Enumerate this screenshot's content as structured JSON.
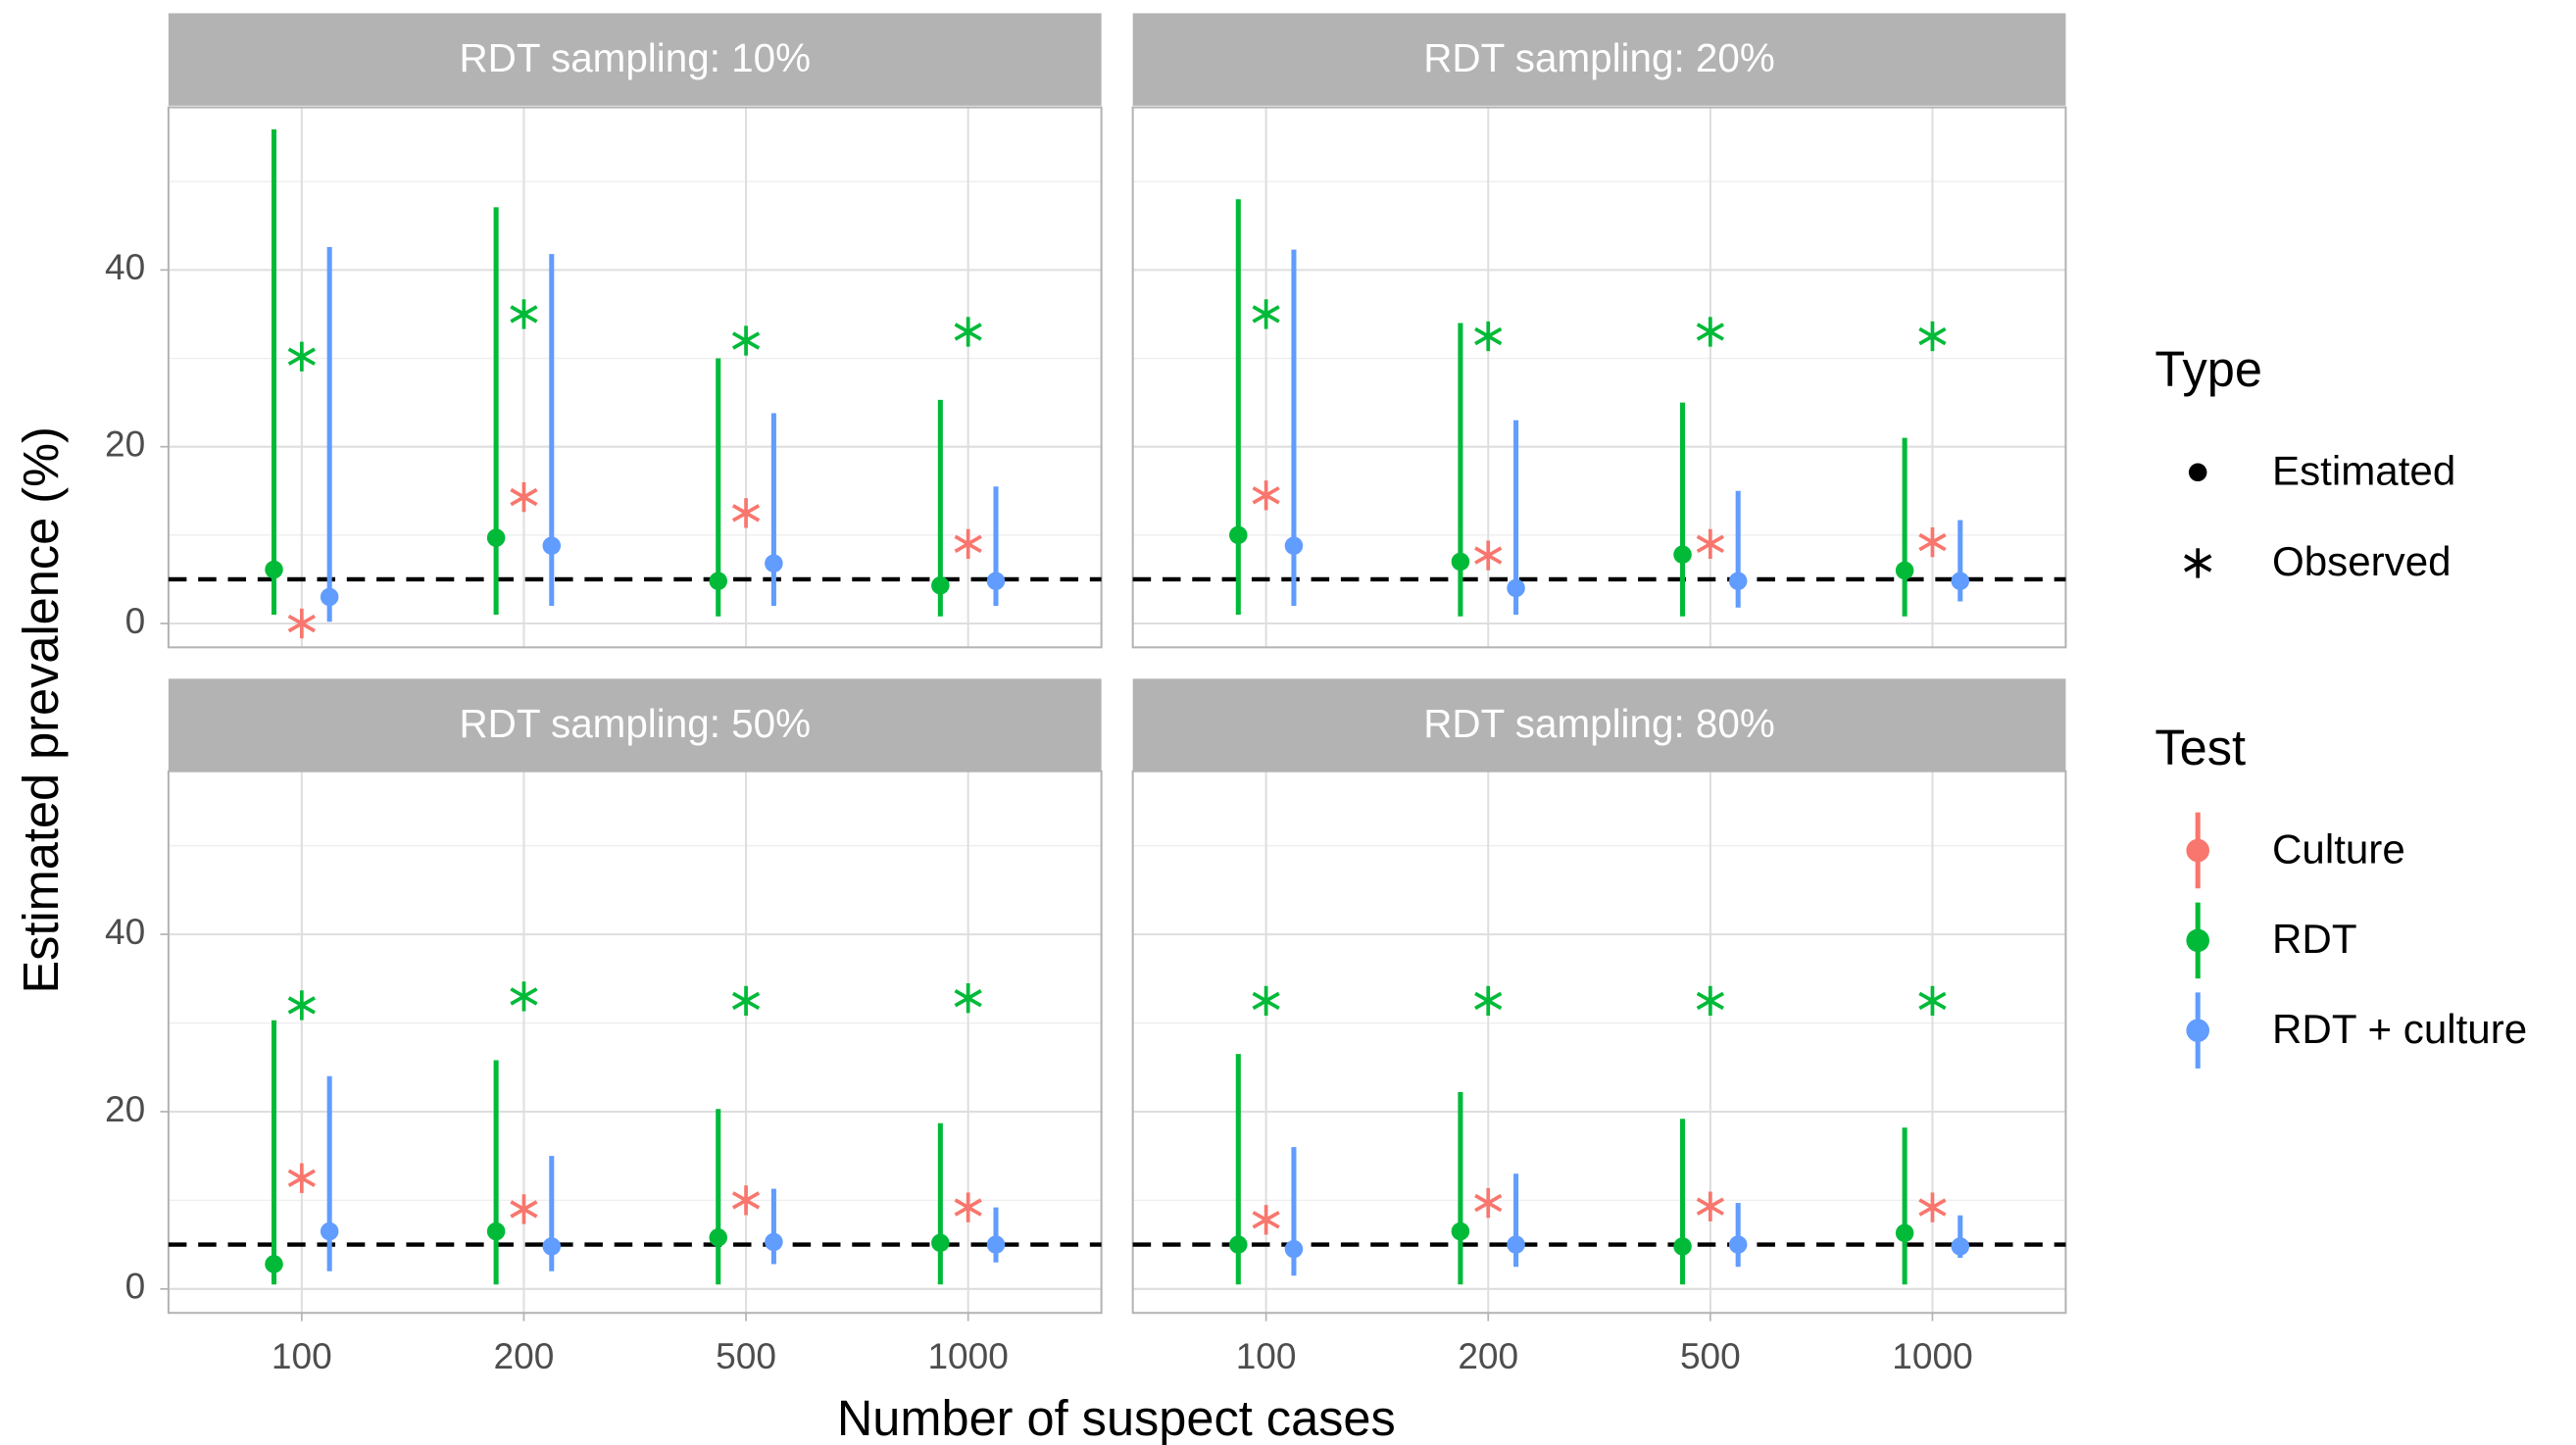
{
  "y_label": "Estimated prevalence (%)",
  "x_label": "Number of suspect cases",
  "legend": {
    "type_title": "Type",
    "type_entries": [
      "Estimated",
      "Observed"
    ],
    "test_title": "Test"
  },
  "chart_data": [
    {
      "type": "pointrange",
      "title": "RDT sampling: 10%",
      "categories": [
        "100",
        "200",
        "500",
        "1000"
      ],
      "ylim": [
        -2.7,
        58.4
      ],
      "yticks": [
        0,
        20,
        40
      ],
      "yminor_ticks": [
        10,
        30,
        50
      ],
      "grid": true,
      "reference_line": 5,
      "series": [
        {
          "name": "Culture",
          "color": "#f8766d",
          "observed": [
            0,
            14.3,
            12.5,
            9
          ]
        },
        {
          "name": "RDT",
          "color": "#00ba38",
          "estimated": [
            6.1,
            9.7,
            4.8,
            4.3
          ],
          "lower": [
            1,
            1,
            0.8,
            0.8
          ],
          "upper": [
            55.9,
            47.1,
            30,
            25.3
          ],
          "observed": [
            30.2,
            35,
            32,
            33
          ]
        },
        {
          "name": "RDT + culture",
          "color": "#619cff",
          "estimated": [
            3,
            8.8,
            6.8,
            4.8
          ],
          "lower": [
            0.2,
            2,
            2,
            2
          ],
          "upper": [
            42.6,
            41.8,
            23.8,
            15.5
          ]
        }
      ]
    },
    {
      "type": "pointrange",
      "title": "RDT sampling: 20%",
      "categories": [
        "100",
        "200",
        "500",
        "1000"
      ],
      "ylim": [
        -2.7,
        58.4
      ],
      "yticks": [
        0,
        20,
        40
      ],
      "yminor_ticks": [
        10,
        30,
        50
      ],
      "grid": true,
      "reference_line": 5,
      "series": [
        {
          "name": "Culture",
          "color": "#f8766d",
          "observed": [
            14.5,
            7.7,
            9,
            9.2
          ]
        },
        {
          "name": "RDT",
          "color": "#00ba38",
          "estimated": [
            10,
            7,
            7.8,
            6
          ],
          "lower": [
            1,
            0.8,
            0.8,
            0.8
          ],
          "upper": [
            48,
            34,
            25,
            21
          ],
          "observed": [
            35,
            32.5,
            33,
            32.5
          ]
        },
        {
          "name": "RDT + culture",
          "color": "#619cff",
          "estimated": [
            8.8,
            4,
            4.8,
            4.8
          ],
          "lower": [
            2,
            1,
            1.8,
            2.5
          ],
          "upper": [
            42.3,
            23,
            15,
            11.7
          ]
        }
      ]
    },
    {
      "type": "pointrange",
      "title": "RDT sampling: 50%",
      "categories": [
        "100",
        "200",
        "500",
        "1000"
      ],
      "ylim": [
        -2.7,
        58.4
      ],
      "yticks": [
        0,
        20,
        40
      ],
      "yminor_ticks": [
        10,
        30,
        50
      ],
      "grid": true,
      "reference_line": 5,
      "series": [
        {
          "name": "Culture",
          "color": "#f8766d",
          "observed": [
            12.5,
            9,
            10,
            9.2
          ]
        },
        {
          "name": "RDT",
          "color": "#00ba38",
          "estimated": [
            2.8,
            6.5,
            5.8,
            5.2
          ],
          "lower": [
            0.5,
            0.5,
            0.5,
            0.5
          ],
          "upper": [
            30.3,
            25.8,
            20.3,
            18.7
          ],
          "observed": [
            32,
            33,
            32.5,
            32.8
          ]
        },
        {
          "name": "RDT + culture",
          "color": "#619cff",
          "estimated": [
            6.5,
            4.8,
            5.3,
            5
          ],
          "lower": [
            2,
            2,
            2.8,
            3
          ],
          "upper": [
            24,
            15,
            11.3,
            9.2
          ]
        }
      ]
    },
    {
      "type": "pointrange",
      "title": "RDT sampling: 80%",
      "categories": [
        "100",
        "200",
        "500",
        "1000"
      ],
      "ylim": [
        -2.7,
        58.4
      ],
      "yticks": [
        0,
        20,
        40
      ],
      "yminor_ticks": [
        10,
        30,
        50
      ],
      "grid": true,
      "reference_line": 5,
      "series": [
        {
          "name": "Culture",
          "color": "#f8766d",
          "observed": [
            7.8,
            9.7,
            9.3,
            9.2
          ]
        },
        {
          "name": "RDT",
          "color": "#00ba38",
          "estimated": [
            5,
            6.5,
            4.8,
            6.3
          ],
          "lower": [
            0.5,
            0.5,
            0.5,
            0.5
          ],
          "upper": [
            26.5,
            22.2,
            19.2,
            18.2
          ],
          "observed": [
            32.5,
            32.5,
            32.5,
            32.5
          ]
        },
        {
          "name": "RDT + culture",
          "color": "#619cff",
          "estimated": [
            4.5,
            5,
            5,
            4.8
          ],
          "lower": [
            1.5,
            2.5,
            2.5,
            3.5
          ],
          "upper": [
            16,
            13,
            9.7,
            8.3
          ]
        }
      ]
    }
  ]
}
